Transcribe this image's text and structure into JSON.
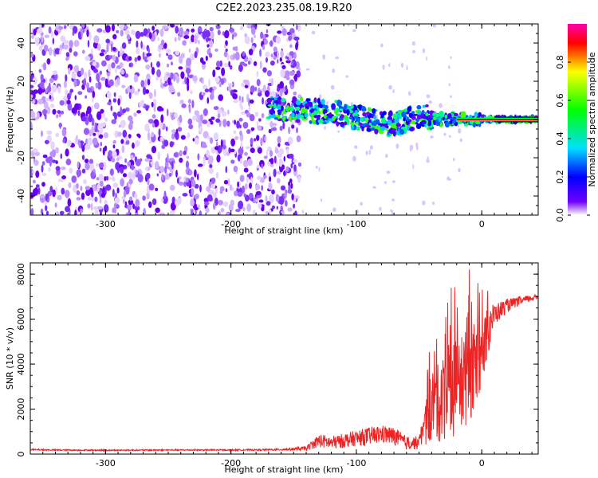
{
  "title": "C2E2.2023.235.08.19.R20",
  "chart_data": [
    {
      "type": "heatmap",
      "xlabel": "Height of straight line (km)",
      "ylabel": "Frequency (Hz)",
      "xlim": [
        -360,
        45
      ],
      "ylim": [
        -50,
        50
      ],
      "xticks": [
        -300,
        -200,
        -100,
        0
      ],
      "yticks": [
        -40,
        -20,
        0,
        20,
        40
      ],
      "colorbar": {
        "label": "Normalized spectral amplitude",
        "range": [
          0,
          1
        ],
        "ticks": [
          "0.0",
          "0.2",
          "0.4",
          "0.6",
          "0.8"
        ],
        "tick_values": [
          0.0,
          0.2,
          0.4,
          0.6,
          0.8
        ],
        "colors": [
          "#ffffff",
          "#7000ff",
          "#0000ff",
          "#00e0ff",
          "#00ff00",
          "#ffff00",
          "#ff0000",
          "#ff00aa"
        ]
      },
      "features": [
        {
          "description": "scattered noise",
          "x_range": [
            -360,
            -145
          ],
          "y_range": [
            -50,
            50
          ],
          "amplitude": 0.1
        },
        {
          "description": "signal band",
          "points": [
            [
              -170,
              6
            ],
            [
              -150,
              5
            ],
            [
              -120,
              4
            ],
            [
              -90,
              0
            ],
            [
              -70,
              -3
            ],
            [
              -50,
              2
            ],
            [
              -30,
              0
            ],
            [
              0,
              0
            ],
            [
              45,
              0
            ]
          ],
          "amplitude": 0.9
        }
      ]
    },
    {
      "type": "line",
      "xlabel": "Height of straight line (km)",
      "ylabel": "SNR (10 * v/v)",
      "xlim": [
        -360,
        45
      ],
      "ylim": [
        0,
        8500
      ],
      "xticks": [
        -300,
        -200,
        -100,
        0
      ],
      "yticks": [
        0,
        2000,
        4000,
        6000,
        8000
      ],
      "color": "#ee2222",
      "x": [
        -360,
        -340,
        -300,
        -250,
        -200,
        -160,
        -140,
        -130,
        -120,
        -100,
        -90,
        -80,
        -70,
        -60,
        -50,
        -40,
        -30,
        -20,
        -10,
        0,
        5,
        10,
        20,
        30,
        45
      ],
      "y": [
        200,
        180,
        170,
        180,
        180,
        200,
        250,
        600,
        500,
        700,
        800,
        900,
        800,
        500,
        500,
        2000,
        2500,
        3000,
        3500,
        4500,
        5500,
        6200,
        6600,
        6800,
        7000
      ],
      "noise": [
        30,
        30,
        30,
        30,
        30,
        40,
        100,
        300,
        300,
        350,
        400,
        400,
        400,
        300,
        300,
        1500,
        2000,
        2200,
        2200,
        1500,
        1200,
        500,
        300,
        200,
        100
      ]
    }
  ]
}
